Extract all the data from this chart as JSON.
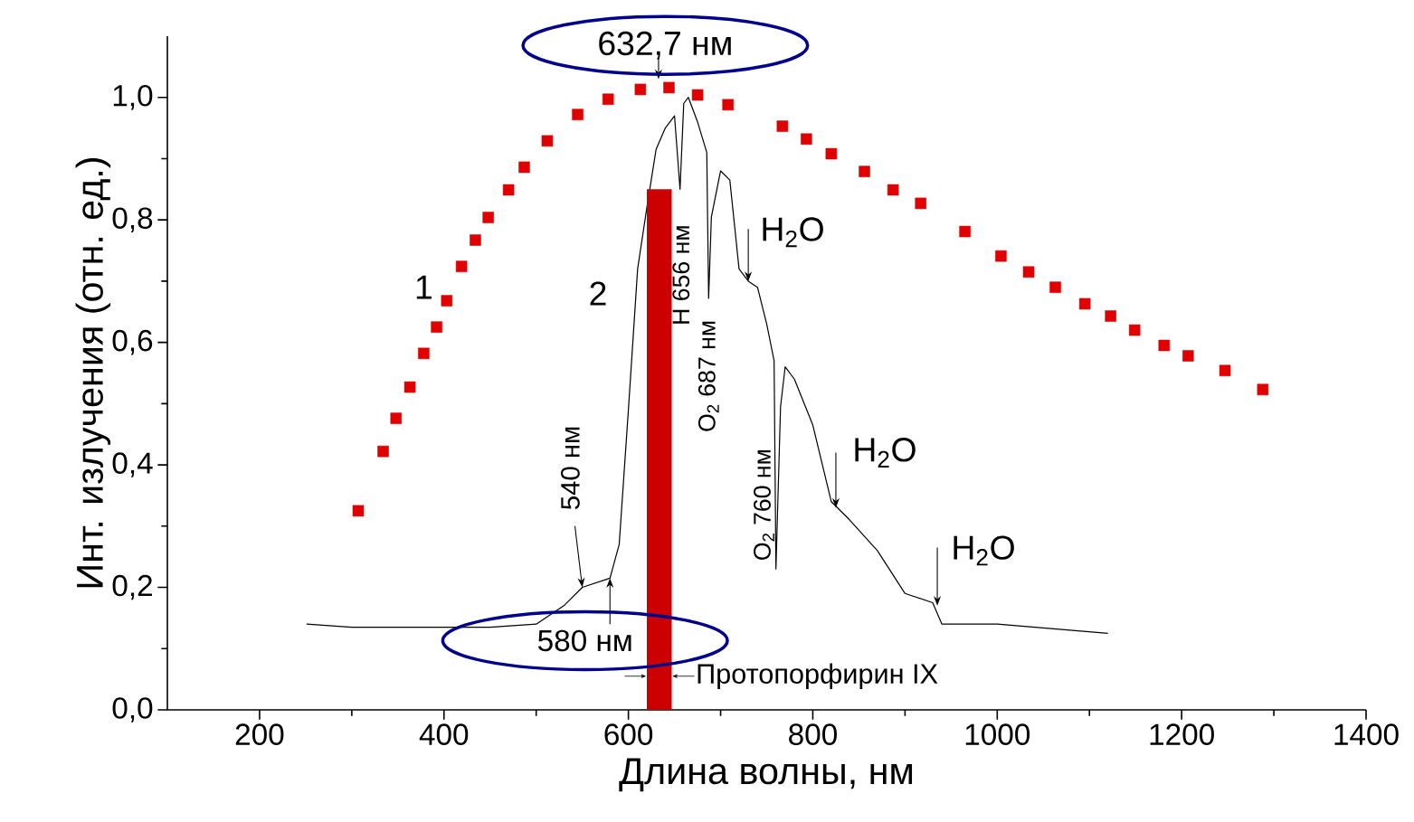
{
  "chart_data": {
    "type": "line",
    "xlabel": "Длина волны, нм",
    "ylabel": "Инт. излучения (отн. ед.)",
    "xlim": [
      100,
      1400
    ],
    "ylim": [
      0,
      1.1
    ],
    "xticks": [
      200,
      400,
      600,
      800,
      1000,
      1200,
      1400
    ],
    "yticks": [
      {
        "value": 0,
        "label": "0,0"
      },
      {
        "value": 0.2,
        "label": "0,2"
      },
      {
        "value": 0.4,
        "label": "0,4"
      },
      {
        "value": 0.6,
        "label": "0,6"
      },
      {
        "value": 0.8,
        "label": "0,8"
      },
      {
        "value": 1.0,
        "label": "1,0"
      }
    ],
    "series": [
      {
        "name": "1",
        "type": "scatter",
        "marker": "square",
        "color": "#e00000",
        "x": [
          307,
          334,
          348,
          363,
          378,
          392,
          403,
          419,
          434,
          448,
          470,
          487,
          512,
          545,
          578,
          613,
          644,
          675,
          708,
          767,
          793,
          820,
          856,
          887,
          917,
          965,
          1004,
          1034,
          1063,
          1095,
          1123,
          1149,
          1181,
          1207,
          1247,
          1288
        ],
        "values": [
          0.325,
          0.422,
          0.476,
          0.527,
          0.582,
          0.625,
          0.668,
          0.724,
          0.767,
          0.804,
          0.849,
          0.886,
          0.929,
          0.972,
          0.997,
          1.013,
          1.016,
          1.004,
          0.988,
          0.953,
          0.932,
          0.908,
          0.879,
          0.849,
          0.827,
          0.781,
          0.741,
          0.715,
          0.69,
          0.663,
          0.643,
          0.62,
          0.595,
          0.578,
          0.554,
          0.523
        ]
      },
      {
        "name": "2",
        "marker": "none",
        "color": "#000000",
        "x": [
          251,
          300,
          400,
          450,
          500,
          530,
          550,
          580,
          590,
          600,
          610,
          620,
          630,
          640,
          650,
          656,
          660,
          665,
          675,
          685,
          687,
          690,
          700,
          710,
          720,
          730,
          740,
          750,
          758,
          760,
          765,
          770,
          780,
          800,
          820,
          840,
          870,
          900,
          930,
          940,
          1000,
          1120
        ],
        "values": [
          0.14,
          0.135,
          0.135,
          0.135,
          0.14,
          0.17,
          0.2,
          0.215,
          0.27,
          0.49,
          0.72,
          0.82,
          0.915,
          0.95,
          0.97,
          0.85,
          0.99,
          1.0,
          0.96,
          0.91,
          0.672,
          0.805,
          0.88,
          0.865,
          0.72,
          0.7,
          0.69,
          0.63,
          0.57,
          0.23,
          0.495,
          0.56,
          0.54,
          0.465,
          0.34,
          0.31,
          0.26,
          0.19,
          0.175,
          0.14,
          0.14,
          0.125
        ]
      },
      {
        "type": "bar",
        "color": "#cc0000",
        "x": [
          633.5
        ],
        "values": [
          0.85
        ]
      }
    ],
    "annotations": [
      "632,7 нм",
      {
        "text": "580 нм",
        "x": 580,
        "y": 0.215
      },
      {
        "text": "540 нм",
        "x": 550,
        "y": 0.2
      },
      {
        "text": "H 656 нм",
        "x": 656,
        "y": 0.85
      },
      {
        "text": "O$_{2}$ 687 нм",
        "x": 687,
        "y": 0.672
      },
      {
        "text": "O$_{2}$ 760 нм",
        "x": 760,
        "y": 0.23
      },
      {
        "text": "H$_{2}$O",
        "x": 730,
        "y": 0.7
      },
      {
        "text": "H$_{2}$O",
        "x": 825,
        "y": 0.33
      },
      {
        "text": "H$_{2}$O",
        "x": 935,
        "y": 0.17
      },
      "Протопорфирин IX"
    ]
  }
}
